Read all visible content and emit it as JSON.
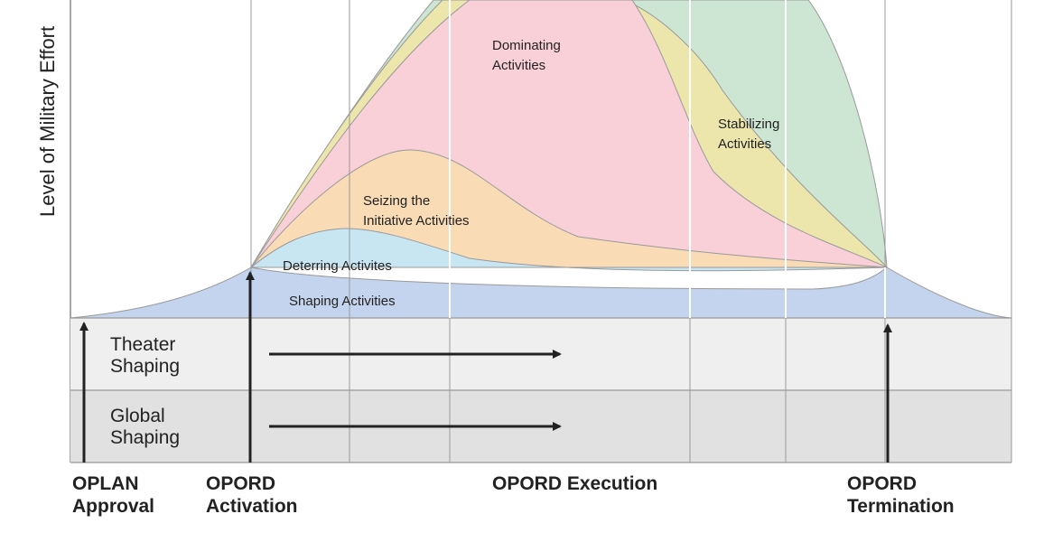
{
  "y_axis_label": "Level of Military Effort",
  "phases": {
    "shaping": "Shaping Activities",
    "deterring": "Deterring Activites",
    "seizing_line1": "Seizing the",
    "seizing_line2": "Initiative Activities",
    "dominating_line1": "Dominating",
    "dominating_line2": "Activities",
    "stabilizing_line1": "Stabilizing",
    "stabilizing_line2": "Activities"
  },
  "bands": {
    "theater_line1": "Theater",
    "theater_line2": "Shaping",
    "global_line1": "Global",
    "global_line2": "Shaping"
  },
  "milestones": {
    "oplan_line1": "OPLAN",
    "oplan_line2": "Approval",
    "opord_activation_line1": "OPORD",
    "opord_activation_line2": "Activation",
    "opord_execution": "OPORD Execution",
    "opord_termination_line1": "OPORD",
    "opord_termination_line2": "Termination"
  },
  "colors": {
    "shaping": "#c5d4ee",
    "deterring": "#c8e6f2",
    "seizing": "#f9dcb6",
    "dominating": "#f9d0d8",
    "stabilizing": "#ece6ad",
    "enabling": "#cde6d4",
    "theater_band": "#efefef",
    "global_band": "#e1e1e1"
  }
}
